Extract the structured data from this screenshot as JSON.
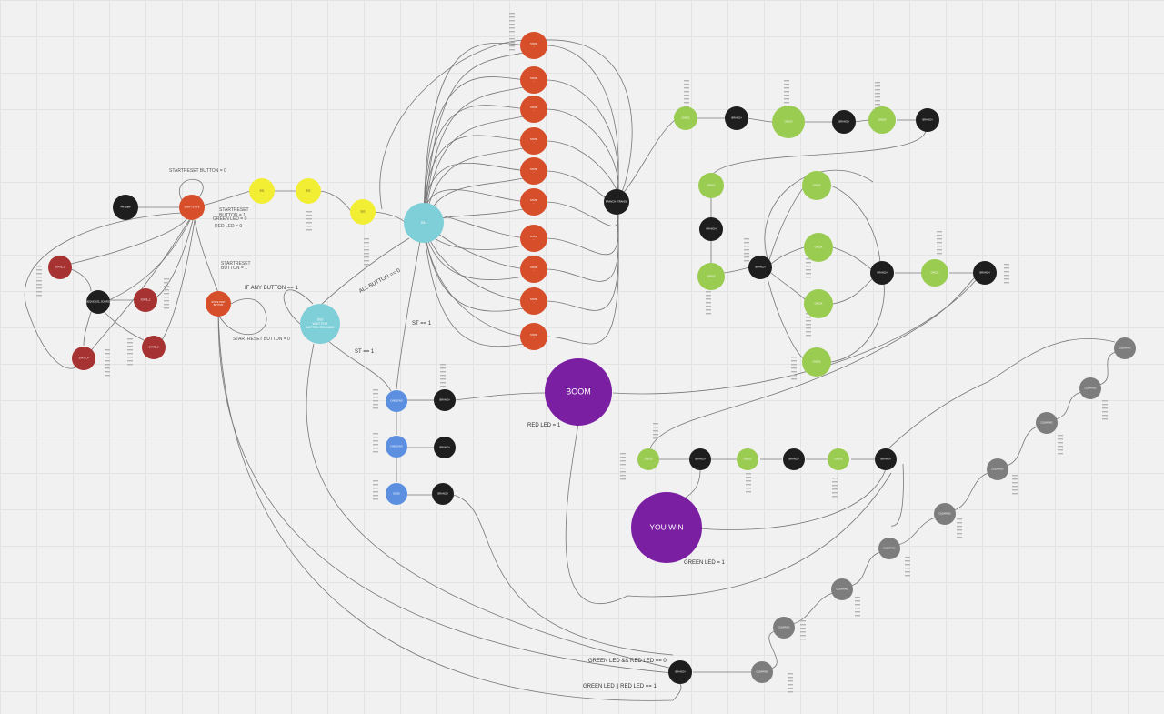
{
  "colors": {
    "orange": "#d64f2a",
    "yellow": "#f2ee33",
    "teal": "#7fcfd8",
    "darkred": "#a63232",
    "black": "#1e1e1e",
    "green": "#9bcc52",
    "blue": "#5c8fe0",
    "purple": "#7b1fa2",
    "gray": "#7d7d7d",
    "edge": "#777777"
  },
  "nodes": {
    "big_boom": "BOOM",
    "big_you_win": "YOU WIN",
    "teal_main": "SS4",
    "teal_wait_line1": "SS3",
    "teal_wait_line2": "WAIT FOR",
    "teal_wait_line3": "BUTTON RELEASE",
    "orange_start": "START STATE",
    "black_pre": "Pre State",
    "orange_left_small": "STATE TEST",
    "orange_left_line2": "BUTTON",
    "yellow_1": "SS1",
    "yellow_2": "SS2",
    "yellow_3": "SS3",
    "darkred_1": "STATE_1",
    "darkred_2": "STATE_2",
    "darkred_3": "STATE_3",
    "darkred_4": "STATE_4",
    "black_left": "SEQUENCE_SOLVED",
    "black_hub": "BRANCH STRANGE",
    "green_top_1": "CHECK",
    "black_top_1": "BRANCH",
    "green_top_2": "CHECK",
    "black_top_2": "BRANCH",
    "green_top_3": "CHECK",
    "black_top_3": "BRANCH",
    "black_right": "BRANCH",
    "blue_1": "CHECKING",
    "blue_2": "CHECKING",
    "blue_3": "DONE",
    "black_b1": "BRANCH",
    "black_b2": "BRANCH",
    "black_b3": "BRANCH",
    "black_bottom": "BRANCH",
    "gray_node": "CLEARING"
  },
  "labels": {
    "green_led_0": "GREEN LED = 0",
    "red_led_0": "RED LED = 0",
    "if_any_button": "IF ANY BUTTON == 1",
    "all_button": "ALL BUTTON == 0",
    "st_1a": "ST == 1",
    "st_1b": "ST == 1",
    "red_led_1": "RED LED = 1",
    "green_led_1": "GREEN LED = 1",
    "green_and_red": "GREEN LED && RED LED == 0",
    "green_or_red": "GREEN LED || RED LED == 1",
    "start_reset_1": "STARTRESET",
    "start_reset_1b": "BUTTON = 1",
    "start_reset_2": "STARTRESET",
    "start_reset_2b": "BUTTON = 1",
    "start_reset_top": "STARTRESET BUTTON = 0",
    "start_reset_loop": "STARTRESET BUTTON = 0"
  }
}
